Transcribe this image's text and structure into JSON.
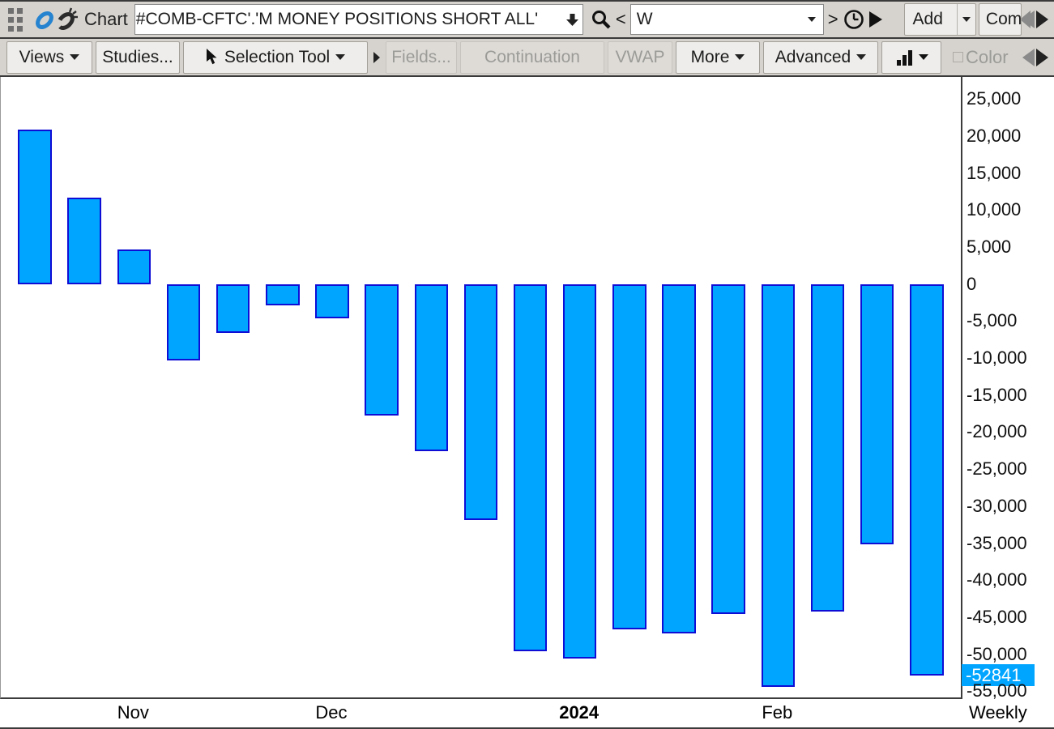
{
  "toolbar_top": {
    "chart_label": "Chart",
    "symbol_input_value": "#COMB-CFTC'.'M MONEY POSITIONS SHORT ALL'",
    "prev_button": "<",
    "interval_value": "W",
    "next_button": ">",
    "add_button": "Add",
    "add_menu_arrow": "",
    "compare_button": "Com"
  },
  "toolbar_tools": {
    "views_button": "Views",
    "studies_button": "Studies...",
    "selection_tool_button": "Selection Tool",
    "fields_button": "Fields...",
    "continuation_button": "Continuation",
    "vwap_button": "VWAP",
    "more_button": "More",
    "advanced_button": "Advanced",
    "color_button": "Color"
  },
  "chart_data": {
    "type": "bar",
    "values": [
      20800,
      11700,
      4700,
      -10300,
      -6600,
      -2900,
      -4600,
      -17800,
      -22600,
      -31900,
      -49600,
      -50600,
      -46700,
      -47200,
      -44600,
      -54400,
      -44200,
      -35200,
      -52841
    ],
    "y_ticks": [
      "25,000",
      "20,000",
      "15,000",
      "10,000",
      "5,000",
      "0",
      "-5,000",
      "-10,000",
      "-15,000",
      "-20,000",
      "-25,000",
      "-30,000",
      "-35,000",
      "-40,000",
      "-45,000",
      "-50,000",
      "-55,000"
    ],
    "ylim": [
      -55800,
      27700
    ],
    "x_month_labels": [
      {
        "label": "Nov",
        "bar_index": 2,
        "bold": false
      },
      {
        "label": "Dec",
        "bar_index": 6,
        "bold": false
      },
      {
        "label": "2024",
        "bar_index": 11,
        "bold": true
      },
      {
        "label": "Feb",
        "bar_index": 15,
        "bold": false
      }
    ],
    "period_label": "Weekly",
    "last_value": -52841,
    "last_value_label": "-52841",
    "bar_fill_color": "#00a5ff",
    "bar_border_color": "#0d0dd6",
    "badge_color": "#00a5ff",
    "grid": false,
    "legend": false
  }
}
